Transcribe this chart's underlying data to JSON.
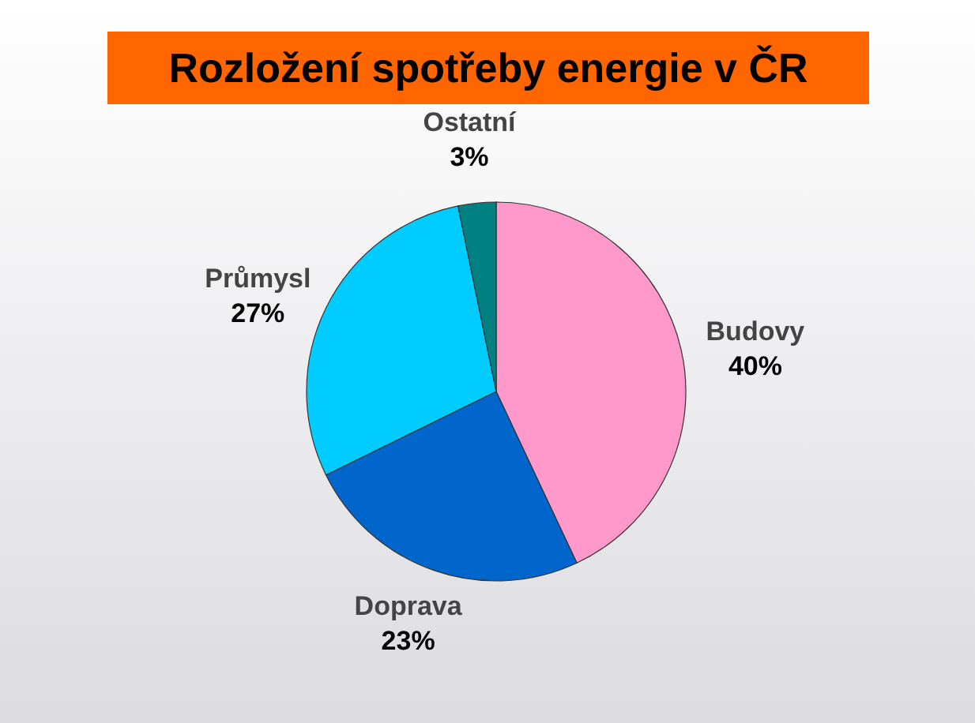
{
  "chart_data": {
    "type": "pie",
    "title": "Rozložení spotřeby energie v ČR",
    "categories": [
      "Budovy",
      "Doprava",
      "Průmysl",
      "Ostatní"
    ],
    "values": [
      40,
      23,
      27,
      3
    ],
    "value_labels": [
      "40%",
      "23%",
      "27%",
      "3%"
    ],
    "colors": [
      "#ff99cc",
      "#0066cc",
      "#00ccff",
      "#008080"
    ]
  }
}
